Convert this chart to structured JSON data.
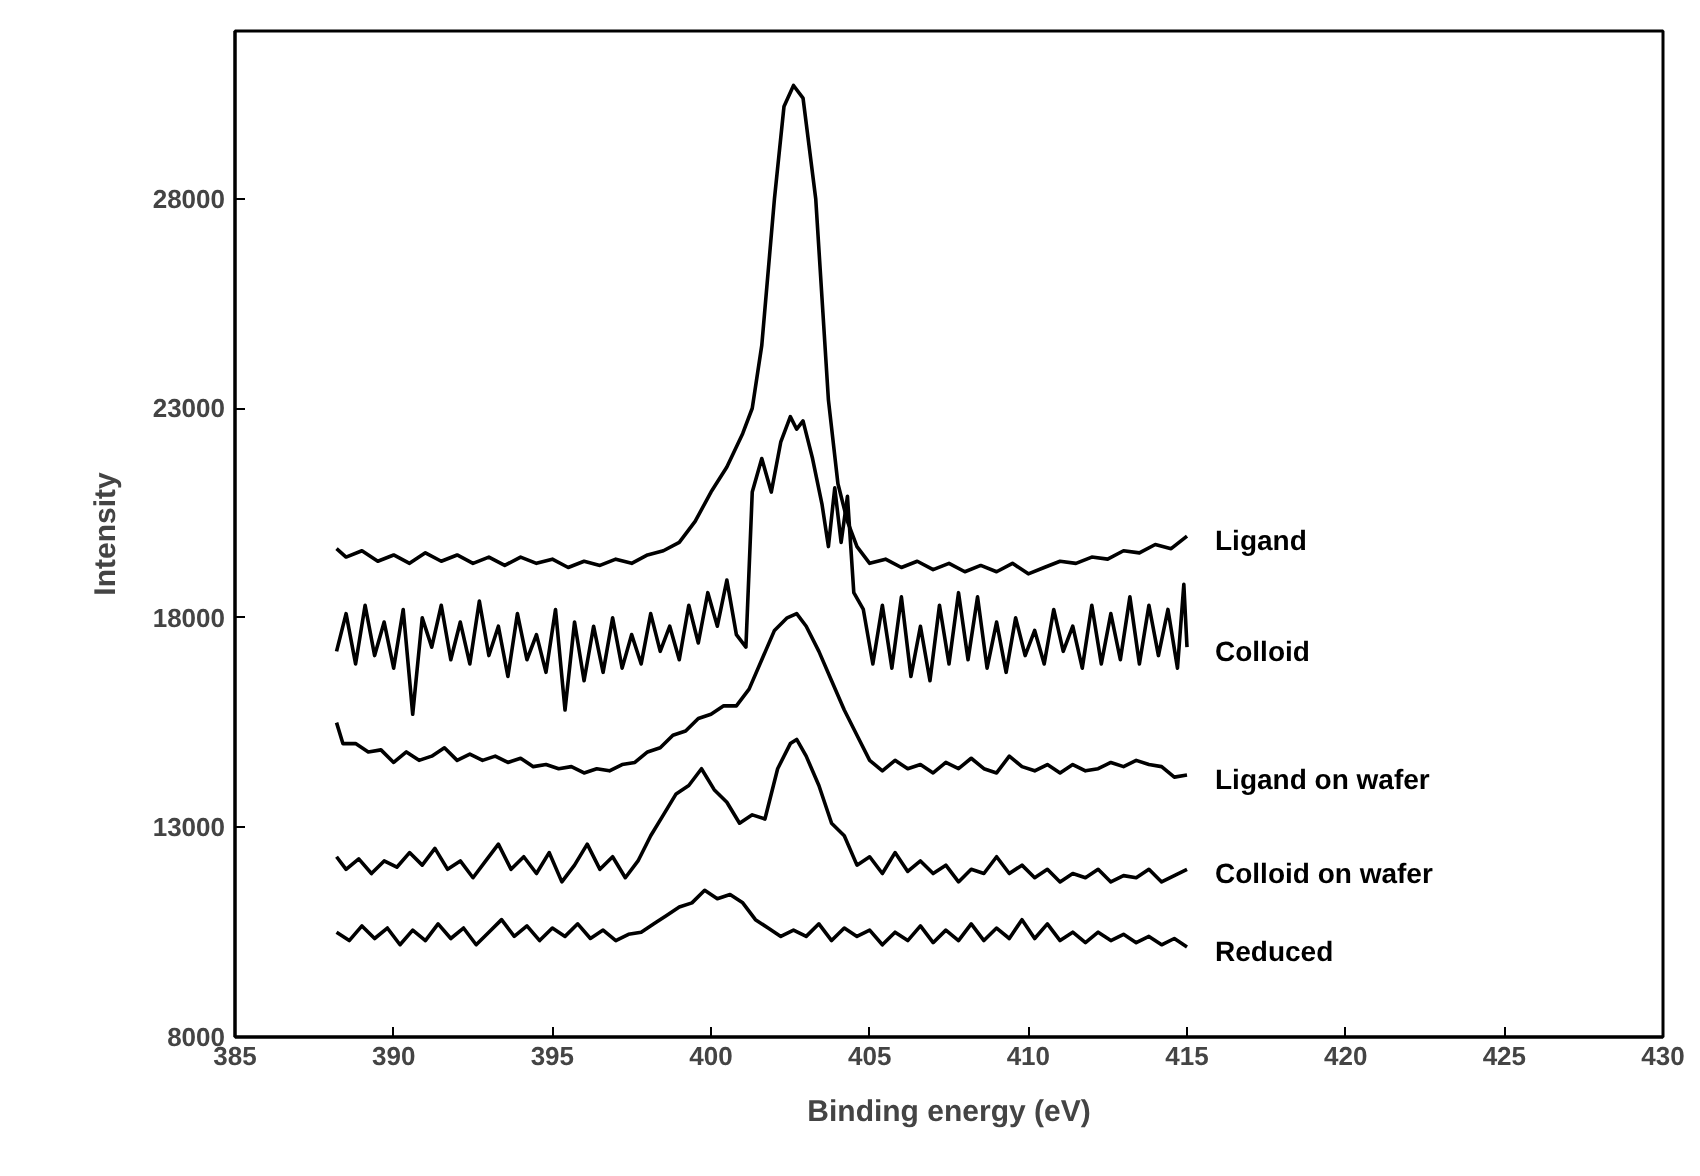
{
  "chart_data": {
    "type": "line",
    "xlabel": "Binding energy (eV)",
    "ylabel": "Intensity",
    "xlim": [
      385,
      430
    ],
    "xticks": [
      385,
      390,
      395,
      400,
      405,
      410,
      415,
      420,
      425,
      430
    ],
    "ylim": [
      8000,
      32000
    ],
    "yticks": [
      8000,
      13000,
      18000,
      23000,
      28000
    ],
    "grid": false,
    "marker": "none",
    "line_style": "solid",
    "series": [
      {
        "name": "Ligand",
        "color": "#000000",
        "x": [
          388.2,
          388.5,
          389,
          389.5,
          390,
          390.5,
          391,
          391.5,
          392,
          392.5,
          393,
          393.5,
          394,
          394.5,
          395,
          395.5,
          396,
          396.5,
          397,
          397.5,
          398,
          398.5,
          399,
          399.5,
          400,
          400.5,
          401,
          401.3,
          401.6,
          402,
          402.3,
          402.6,
          402.9,
          403.3,
          403.7,
          404,
          404.3,
          404.6,
          405,
          405.5,
          406,
          406.5,
          407,
          407.5,
          408,
          408.5,
          409,
          409.5,
          410,
          410.5,
          411,
          411.5,
          412,
          412.5,
          413,
          413.5,
          414,
          414.5,
          415
        ],
        "values": [
          19650,
          19450,
          19600,
          19350,
          19500,
          19300,
          19550,
          19350,
          19500,
          19300,
          19450,
          19250,
          19450,
          19300,
          19400,
          19200,
          19350,
          19250,
          19400,
          19300,
          19500,
          19600,
          19800,
          20300,
          21000,
          21600,
          22400,
          23000,
          24500,
          28000,
          30200,
          30700,
          30400,
          28000,
          23200,
          21200,
          20300,
          19700,
          19300,
          19400,
          19200,
          19350,
          19150,
          19300,
          19100,
          19250,
          19100,
          19300,
          19050,
          19200,
          19350,
          19300,
          19450,
          19400,
          19600,
          19550,
          19750,
          19650,
          19950
        ]
      },
      {
        "name": "Colloid",
        "color": "#000000",
        "x": [
          388.2,
          388.5,
          388.8,
          389.1,
          389.4,
          389.7,
          390,
          390.3,
          390.6,
          390.9,
          391.2,
          391.5,
          391.8,
          392.1,
          392.4,
          392.7,
          393,
          393.3,
          393.6,
          393.9,
          394.2,
          394.5,
          394.8,
          395.1,
          395.4,
          395.7,
          396,
          396.3,
          396.6,
          396.9,
          397.2,
          397.5,
          397.8,
          398.1,
          398.4,
          398.7,
          399,
          399.3,
          399.6,
          399.9,
          400.2,
          400.5,
          400.8,
          401.1,
          401.3,
          401.6,
          401.9,
          402.2,
          402.5,
          402.7,
          402.9,
          403.2,
          403.5,
          403.7,
          403.9,
          404.1,
          404.3,
          404.5,
          404.8,
          405.1,
          405.4,
          405.7,
          406,
          406.3,
          406.6,
          406.9,
          407.2,
          407.5,
          407.8,
          408.1,
          408.4,
          408.7,
          409,
          409.3,
          409.6,
          409.9,
          410.2,
          410.5,
          410.8,
          411.1,
          411.4,
          411.7,
          412,
          412.3,
          412.6,
          412.9,
          413.2,
          413.5,
          413.8,
          414.1,
          414.4,
          414.7,
          414.9,
          415
        ],
        "values": [
          17200,
          18100,
          16900,
          18300,
          17100,
          17900,
          16800,
          18200,
          15700,
          18000,
          17300,
          18300,
          17000,
          17900,
          16900,
          18400,
          17100,
          17800,
          16600,
          18100,
          17000,
          17600,
          16700,
          18200,
          15800,
          17900,
          16500,
          17800,
          16700,
          18000,
          16800,
          17600,
          16900,
          18100,
          17200,
          17800,
          17000,
          18300,
          17400,
          18600,
          17800,
          18900,
          17600,
          17300,
          21000,
          21800,
          21000,
          22200,
          22800,
          22500,
          22700,
          21800,
          20700,
          19700,
          21100,
          19800,
          20900,
          18600,
          18200,
          16900,
          18300,
          16800,
          18500,
          16600,
          17800,
          16500,
          18300,
          16900,
          18600,
          17000,
          18500,
          16800,
          17900,
          16700,
          18000,
          17100,
          17700,
          16900,
          18200,
          17200,
          17800,
          16800,
          18300,
          16900,
          18100,
          17000,
          18500,
          16900,
          18300,
          17100,
          18200,
          16800,
          18800,
          17300
        ]
      },
      {
        "name": "Ligand on wafer",
        "color": "#000000",
        "x": [
          388.2,
          388.4,
          388.8,
          389.2,
          389.6,
          390,
          390.4,
          390.8,
          391.2,
          391.6,
          392,
          392.4,
          392.8,
          393.2,
          393.6,
          394,
          394.4,
          394.8,
          395.2,
          395.6,
          396,
          396.4,
          396.8,
          397.2,
          397.6,
          398,
          398.4,
          398.8,
          399.2,
          399.6,
          400,
          400.4,
          400.8,
          401.2,
          401.6,
          402,
          402.4,
          402.7,
          403,
          403.4,
          403.8,
          404.2,
          404.6,
          405,
          405.4,
          405.8,
          406.2,
          406.6,
          407,
          407.4,
          407.8,
          408.2,
          408.6,
          409,
          409.4,
          409.8,
          410.2,
          410.6,
          411,
          411.4,
          411.8,
          412.2,
          412.6,
          413,
          413.4,
          413.8,
          414.2,
          414.6,
          415
        ],
        "values": [
          15500,
          15000,
          15000,
          14800,
          14850,
          14550,
          14800,
          14600,
          14700,
          14900,
          14600,
          14750,
          14600,
          14700,
          14550,
          14650,
          14450,
          14500,
          14400,
          14450,
          14300,
          14400,
          14350,
          14500,
          14550,
          14800,
          14900,
          15200,
          15300,
          15600,
          15700,
          15900,
          15900,
          16300,
          17000,
          17700,
          18000,
          18100,
          17800,
          17200,
          16500,
          15800,
          15200,
          14600,
          14350,
          14600,
          14400,
          14500,
          14300,
          14550,
          14400,
          14650,
          14400,
          14300,
          14700,
          14450,
          14350,
          14500,
          14300,
          14500,
          14350,
          14400,
          14550,
          14450,
          14600,
          14500,
          14450,
          14200,
          14250
        ]
      },
      {
        "name": "Colloid on wafer",
        "color": "#000000",
        "x": [
          388.2,
          388.5,
          388.9,
          389.3,
          389.7,
          390.1,
          390.5,
          390.9,
          391.3,
          391.7,
          392.1,
          392.5,
          392.9,
          393.3,
          393.7,
          394.1,
          394.5,
          394.9,
          395.3,
          395.7,
          396.1,
          396.5,
          396.9,
          397.3,
          397.7,
          398.1,
          398.5,
          398.9,
          399.3,
          399.7,
          400.1,
          400.5,
          400.9,
          401.3,
          401.7,
          402.1,
          402.5,
          402.7,
          403,
          403.4,
          403.8,
          404.2,
          404.6,
          405,
          405.4,
          405.8,
          406.2,
          406.6,
          407,
          407.4,
          407.8,
          408.2,
          408.6,
          409,
          409.4,
          409.8,
          410.2,
          410.6,
          411,
          411.4,
          411.8,
          412.2,
          412.6,
          413,
          413.4,
          413.8,
          414.2,
          414.6,
          415
        ],
        "values": [
          12300,
          12000,
          12250,
          11900,
          12200,
          12050,
          12400,
          12100,
          12500,
          12000,
          12200,
          11800,
          12200,
          12600,
          12000,
          12300,
          11900,
          12400,
          11700,
          12100,
          12600,
          12000,
          12300,
          11800,
          12200,
          12800,
          13300,
          13800,
          14000,
          14400,
          13900,
          13600,
          13100,
          13300,
          13200,
          14400,
          15000,
          15100,
          14700,
          14000,
          13100,
          12800,
          12100,
          12300,
          11900,
          12400,
          11950,
          12200,
          11900,
          12100,
          11700,
          12000,
          11900,
          12300,
          11900,
          12100,
          11800,
          12000,
          11700,
          11900,
          11800,
          12000,
          11700,
          11850,
          11800,
          12000,
          11700,
          11850,
          12000
        ]
      },
      {
        "name": "Reduced",
        "color": "#000000",
        "x": [
          388.2,
          388.6,
          389,
          389.4,
          389.8,
          390.2,
          390.6,
          391,
          391.4,
          391.8,
          392.2,
          392.6,
          393,
          393.4,
          393.8,
          394.2,
          394.6,
          395,
          395.4,
          395.8,
          396.2,
          396.6,
          397,
          397.4,
          397.8,
          398.2,
          398.6,
          399,
          399.4,
          399.8,
          400.2,
          400.6,
          401,
          401.4,
          401.8,
          402.2,
          402.6,
          403,
          403.4,
          403.8,
          404.2,
          404.6,
          405,
          405.4,
          405.8,
          406.2,
          406.6,
          407,
          407.4,
          407.8,
          408.2,
          408.6,
          409,
          409.4,
          409.8,
          410.2,
          410.6,
          411,
          411.4,
          411.8,
          412.2,
          412.6,
          413,
          413.4,
          413.8,
          414.2,
          414.6,
          415
        ],
        "values": [
          10500,
          10300,
          10650,
          10350,
          10600,
          10200,
          10550,
          10300,
          10700,
          10350,
          10600,
          10200,
          10500,
          10800,
          10400,
          10650,
          10300,
          10600,
          10400,
          10700,
          10350,
          10550,
          10300,
          10450,
          10500,
          10700,
          10900,
          11100,
          11200,
          11500,
          11300,
          11400,
          11200,
          10800,
          10600,
          10400,
          10550,
          10400,
          10700,
          10300,
          10600,
          10400,
          10550,
          10200,
          10500,
          10300,
          10650,
          10250,
          10550,
          10300,
          10700,
          10300,
          10600,
          10350,
          10800,
          10350,
          10700,
          10300,
          10500,
          10250,
          10500,
          10300,
          10450,
          10250,
          10400,
          10200,
          10350,
          10150
        ]
      }
    ]
  }
}
